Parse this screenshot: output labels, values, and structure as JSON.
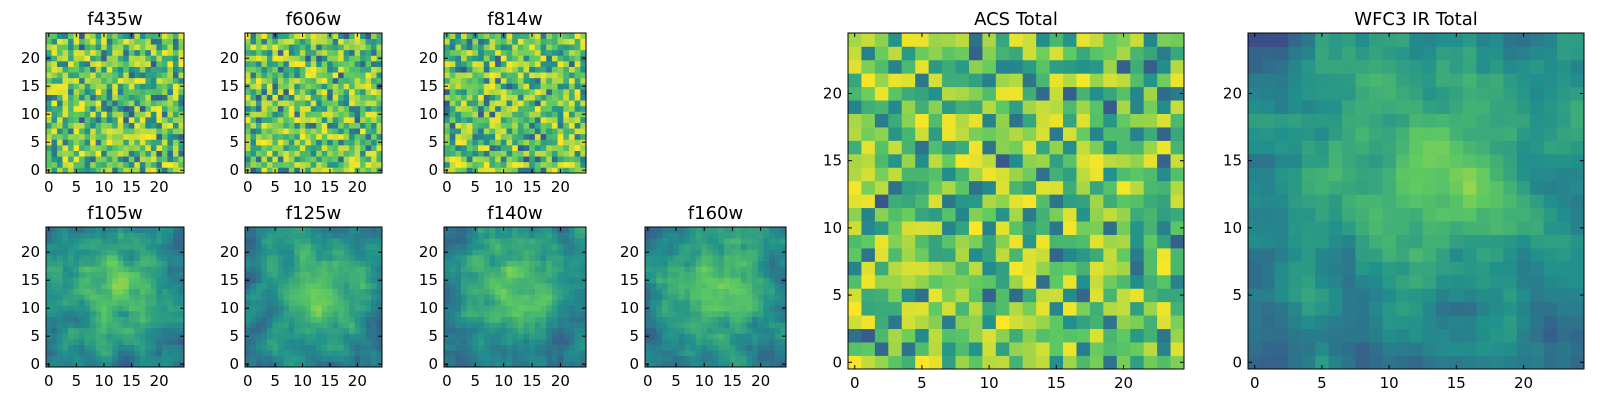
{
  "chart_data": [
    {
      "type": "heatmap",
      "title": "f435w",
      "size": 25,
      "xlim": [
        0,
        24
      ],
      "ylim": [
        0,
        24
      ],
      "xticks": [
        0,
        5,
        10,
        15,
        20
      ],
      "yticks": [
        0,
        5,
        10,
        15,
        20
      ],
      "pattern": "noise",
      "colormap": "viridis"
    },
    {
      "type": "heatmap",
      "title": "f606w",
      "size": 25,
      "xlim": [
        0,
        24
      ],
      "ylim": [
        0,
        24
      ],
      "xticks": [
        0,
        5,
        10,
        15,
        20
      ],
      "yticks": [
        0,
        5,
        10,
        15,
        20
      ],
      "pattern": "noise",
      "colormap": "viridis"
    },
    {
      "type": "heatmap",
      "title": "f814w",
      "size": 25,
      "xlim": [
        0,
        24
      ],
      "ylim": [
        0,
        24
      ],
      "xticks": [
        0,
        5,
        10,
        15,
        20
      ],
      "yticks": [
        0,
        5,
        10,
        15,
        20
      ],
      "pattern": "noise",
      "colormap": "viridis"
    },
    {
      "type": "heatmap",
      "title": "f105w",
      "size": 25,
      "xlim": [
        0,
        24
      ],
      "ylim": [
        0,
        24
      ],
      "xticks": [
        0,
        5,
        10,
        15,
        20
      ],
      "yticks": [
        0,
        5,
        10,
        15,
        20
      ],
      "pattern": "blob",
      "colormap": "viridis"
    },
    {
      "type": "heatmap",
      "title": "f125w",
      "size": 25,
      "xlim": [
        0,
        24
      ],
      "ylim": [
        0,
        24
      ],
      "xticks": [
        0,
        5,
        10,
        15,
        20
      ],
      "yticks": [
        0,
        5,
        10,
        15,
        20
      ],
      "pattern": "blob",
      "colormap": "viridis"
    },
    {
      "type": "heatmap",
      "title": "f140w",
      "size": 25,
      "xlim": [
        0,
        24
      ],
      "ylim": [
        0,
        24
      ],
      "xticks": [
        0,
        5,
        10,
        15,
        20
      ],
      "yticks": [
        0,
        5,
        10,
        15,
        20
      ],
      "pattern": "blob",
      "colormap": "viridis"
    },
    {
      "type": "heatmap",
      "title": "f160w",
      "size": 25,
      "xlim": [
        0,
        24
      ],
      "ylim": [
        0,
        24
      ],
      "xticks": [
        0,
        5,
        10,
        15,
        20
      ],
      "yticks": [
        0,
        5,
        10,
        15,
        20
      ],
      "pattern": "blob",
      "colormap": "viridis"
    },
    {
      "type": "heatmap",
      "title": "ACS Total",
      "size": 25,
      "xlim": [
        0,
        24
      ],
      "ylim": [
        0,
        24
      ],
      "xticks": [
        0,
        5,
        10,
        15,
        20
      ],
      "yticks": [
        0,
        5,
        10,
        15,
        20
      ],
      "pattern": "noise",
      "colormap": "viridis"
    },
    {
      "type": "heatmap",
      "title": "WFC3 IR Total",
      "size": 25,
      "xlim": [
        0,
        24
      ],
      "ylim": [
        0,
        24
      ],
      "xticks": [
        0,
        5,
        10,
        15,
        20
      ],
      "yticks": [
        0,
        5,
        10,
        15,
        20
      ],
      "pattern": "blob",
      "colormap": "viridis"
    }
  ]
}
